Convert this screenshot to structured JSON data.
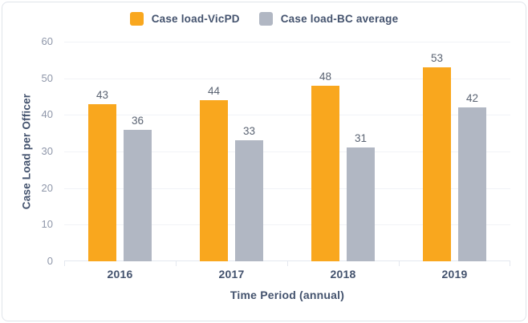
{
  "chart_data": {
    "type": "bar",
    "categories": [
      "2016",
      "2017",
      "2018",
      "2019"
    ],
    "series": [
      {
        "name": "Case load-VicPD",
        "color": "#f9a71e",
        "values": [
          43,
          44,
          48,
          53
        ]
      },
      {
        "name": "Case load-BC average",
        "color": "#b1b7c3",
        "values": [
          36,
          33,
          31,
          42
        ]
      }
    ],
    "title": "",
    "xlabel": "Time Period (annual)",
    "ylabel": "Case Load per Officer",
    "ylim": [
      0,
      60
    ],
    "yticks": [
      0,
      10,
      20,
      30,
      40,
      50,
      60
    ],
    "grid": true,
    "legend_position": "top",
    "value_labels": true
  },
  "colors": {
    "background": "#ffffff",
    "card_border": "#e0e4ea",
    "series_vicpd": "#f9a71e",
    "series_bc_average": "#b1b7c3",
    "axis_title_text": "#44536e",
    "category_text": "#44536e",
    "tick_text": "#8e96a9",
    "value_label_text": "#5a6372",
    "gridline": "#f1f3f7",
    "baseline": "#e4e8ef"
  }
}
